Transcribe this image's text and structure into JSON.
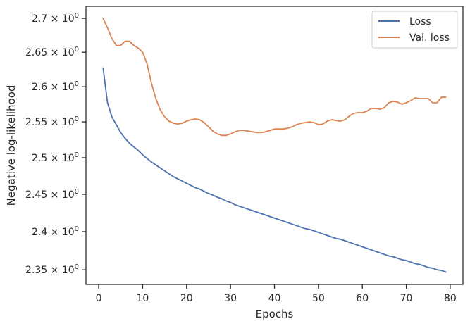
{
  "chart_data": {
    "type": "line",
    "title": "",
    "xlabel": "Epochs",
    "ylabel": "Negative log-likelihood",
    "xlim": [
      -2.9,
      82.9
    ],
    "ylim": [
      2.331,
      2.718
    ],
    "yscale": "log",
    "grid": false,
    "legend_position": "top-right",
    "x_ticks": [
      0,
      10,
      20,
      30,
      40,
      50,
      60,
      70,
      80
    ],
    "x_tick_labels": [
      "0",
      "10",
      "20",
      "30",
      "40",
      "50",
      "60",
      "70",
      "80"
    ],
    "y_ticks": [
      2.35,
      2.4,
      2.45,
      2.5,
      2.55,
      2.6,
      2.65,
      2.7
    ],
    "y_tick_mantissas": [
      "2.35",
      "2.4",
      "2.45",
      "2.5",
      "2.55",
      "2.6",
      "2.65",
      "2.7"
    ],
    "y_tick_suffix": "× 10",
    "y_tick_exponent": "0",
    "series": [
      {
        "name": "Loss",
        "color": "#4c72b0",
        "x": [
          1,
          2,
          3,
          4,
          5,
          6,
          7,
          8,
          9,
          10,
          11,
          12,
          13,
          14,
          15,
          16,
          17,
          18,
          19,
          20,
          21,
          22,
          23,
          24,
          25,
          26,
          27,
          28,
          29,
          30,
          31,
          32,
          33,
          34,
          35,
          36,
          37,
          38,
          39,
          40,
          41,
          42,
          43,
          44,
          45,
          46,
          47,
          48,
          49,
          50,
          51,
          52,
          53,
          54,
          55,
          56,
          57,
          58,
          59,
          60,
          61,
          62,
          63,
          64,
          65,
          66,
          67,
          68,
          69,
          70,
          71,
          72,
          73,
          74,
          75,
          76,
          77,
          78,
          79
        ],
        "values": [
          2.627,
          2.577,
          2.557,
          2.546,
          2.535,
          2.527,
          2.52,
          2.515,
          2.51,
          2.504,
          2.499,
          2.494,
          2.49,
          2.486,
          2.482,
          2.478,
          2.474,
          2.471,
          2.468,
          2.465,
          2.462,
          2.459,
          2.457,
          2.454,
          2.451,
          2.449,
          2.446,
          2.444,
          2.441,
          2.439,
          2.436,
          2.434,
          2.432,
          2.43,
          2.428,
          2.426,
          2.424,
          2.422,
          2.42,
          2.418,
          2.416,
          2.414,
          2.412,
          2.41,
          2.408,
          2.406,
          2.404,
          2.403,
          2.401,
          2.399,
          2.397,
          2.395,
          2.393,
          2.391,
          2.39,
          2.388,
          2.386,
          2.384,
          2.382,
          2.38,
          2.378,
          2.376,
          2.374,
          2.372,
          2.37,
          2.368,
          2.367,
          2.365,
          2.363,
          2.362,
          2.36,
          2.358,
          2.357,
          2.355,
          2.353,
          2.352,
          2.35,
          2.349,
          2.347
        ]
      },
      {
        "name": "Val. loss",
        "color": "#dd8452",
        "x": [
          1,
          2,
          3,
          4,
          5,
          6,
          7,
          8,
          9,
          10,
          11,
          12,
          13,
          14,
          15,
          16,
          17,
          18,
          19,
          20,
          21,
          22,
          23,
          24,
          25,
          26,
          27,
          28,
          29,
          30,
          31,
          32,
          33,
          34,
          35,
          36,
          37,
          38,
          39,
          40,
          41,
          42,
          43,
          44,
          45,
          46,
          47,
          48,
          49,
          50,
          51,
          52,
          53,
          54,
          55,
          56,
          57,
          58,
          59,
          60,
          61,
          62,
          63,
          64,
          65,
          66,
          67,
          68,
          69,
          70,
          71,
          72,
          73,
          74,
          75,
          76,
          77,
          78,
          79
        ],
        "values": [
          2.7,
          2.686,
          2.67,
          2.66,
          2.66,
          2.666,
          2.666,
          2.66,
          2.656,
          2.65,
          2.633,
          2.605,
          2.583,
          2.567,
          2.557,
          2.551,
          2.548,
          2.547,
          2.548,
          2.551,
          2.553,
          2.554,
          2.553,
          2.549,
          2.543,
          2.537,
          2.533,
          2.531,
          2.531,
          2.533,
          2.536,
          2.538,
          2.538,
          2.537,
          2.536,
          2.535,
          2.535,
          2.536,
          2.538,
          2.54,
          2.54,
          2.54,
          2.541,
          2.543,
          2.546,
          2.548,
          2.549,
          2.55,
          2.549,
          2.546,
          2.547,
          2.551,
          2.553,
          2.552,
          2.551,
          2.553,
          2.558,
          2.562,
          2.563,
          2.563,
          2.565,
          2.569,
          2.569,
          2.568,
          2.57,
          2.577,
          2.579,
          2.578,
          2.575,
          2.577,
          2.58,
          2.584,
          2.583,
          2.583,
          2.583,
          2.577,
          2.577,
          2.585,
          2.585
        ]
      }
    ]
  }
}
